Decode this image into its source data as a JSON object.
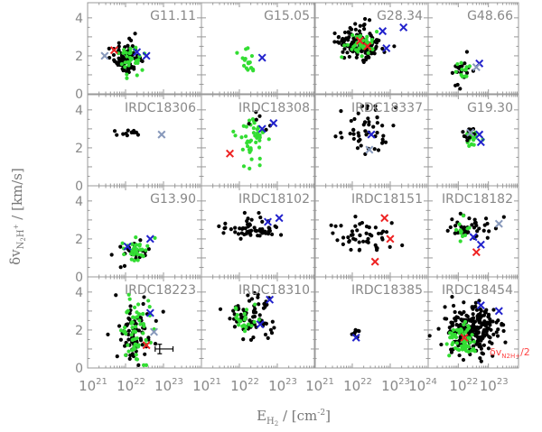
{
  "chart_data": {
    "type": "scatter",
    "grid_layout": "4x4",
    "xlabel": "E_H2 / [cm^-2]",
    "xlabel_parts": {
      "E": "E",
      "sub": "H",
      "sub2": "2",
      "unit": " / [cm",
      "exp": "-2",
      "close": "]"
    },
    "ylabel": "δv_N2H+ / [km/s]",
    "ylabel_parts": {
      "delta": "δv",
      "sub": "N",
      "sub2": "2",
      "sub3": "H",
      "sup": "+",
      "unit": " / [km/s]"
    },
    "xscale": "log",
    "xlim_log10": [
      21,
      24
    ],
    "ylim": [
      0,
      4.8
    ],
    "x_ticks": [
      {
        "label": "10",
        "exp": "21",
        "log10": 21
      },
      {
        "label": "10",
        "exp": "22",
        "log10": 22
      },
      {
        "label": "10",
        "exp": "23",
        "log10": 23
      }
    ],
    "x_ticks_last_col": [
      {
        "label": "10",
        "exp": "22",
        "log10": 22
      },
      {
        "label": "10",
        "exp": "23",
        "log10": 23
      }
    ],
    "x_tick_24": {
      "label": "10",
      "exp": "24"
    },
    "y_ticks": [
      "0",
      "2",
      "4"
    ],
    "y_tick_values": [
      0,
      2,
      4
    ],
    "legend_note": {
      "text": "δv",
      "sub": "N2H+",
      "suffix": "/2",
      "color": "#ff4444"
    },
    "error_bar": {
      "x_log10": 22.9,
      "y": 1.0,
      "xerr_log10": [
        22.78,
        23.25
      ],
      "yerr": 0.25
    },
    "marker_colors": {
      "black": "#000000",
      "green": "#33dd33",
      "red": "#ee2222",
      "blue": "#2222cc",
      "gray": "#8899bb"
    },
    "panels": [
      {
        "title": "G11.11",
        "clusters": [
          {
            "color": "black",
            "n": 90,
            "cx": 22.05,
            "cy": 1.9,
            "sx": 0.17,
            "sy": 0.42,
            "seed": 1
          },
          {
            "color": "green",
            "n": 30,
            "cx": 22.15,
            "cy": 1.9,
            "sx": 0.15,
            "sy": 0.35,
            "seed": 2
          }
        ],
        "crosses": [
          {
            "c": "gray",
            "x": 21.45,
            "y": 2.0
          },
          {
            "c": "red",
            "x": 21.7,
            "y": 2.3
          },
          {
            "c": "blue",
            "x": 22.55,
            "y": 2.0
          },
          {
            "c": "blue",
            "x": 22.3,
            "y": 2.2
          }
        ]
      },
      {
        "title": "G15.05",
        "clusters": [
          {
            "color": "green",
            "n": 18,
            "cx": 22.2,
            "cy": 1.55,
            "sx": 0.1,
            "sy": 0.35,
            "seed": 3
          }
        ],
        "crosses": [
          {
            "c": "blue",
            "x": 22.6,
            "y": 1.9
          }
        ]
      },
      {
        "title": "G28.34",
        "clusters": [
          {
            "color": "black",
            "n": 140,
            "cx": 22.2,
            "cy": 2.6,
            "sx": 0.3,
            "sy": 0.45,
            "seed": 4
          },
          {
            "color": "green",
            "n": 35,
            "cx": 22.3,
            "cy": 2.6,
            "sx": 0.25,
            "sy": 0.35,
            "seed": 5
          }
        ],
        "crosses": [
          {
            "c": "red",
            "x": 22.2,
            "y": 2.8
          },
          {
            "c": "red",
            "x": 22.4,
            "y": 2.5
          },
          {
            "c": "blue",
            "x": 22.8,
            "y": 3.3
          },
          {
            "c": "blue",
            "x": 23.35,
            "y": 3.5
          },
          {
            "c": "blue",
            "x": 22.9,
            "y": 2.4
          }
        ]
      },
      {
        "title": "G48.66",
        "clusters": [
          {
            "color": "black",
            "n": 22,
            "cx": 22.1,
            "cy": 1.2,
            "sx": 0.12,
            "sy": 0.35,
            "seed": 6
          },
          {
            "color": "green",
            "n": 12,
            "cx": 22.15,
            "cy": 1.4,
            "sx": 0.1,
            "sy": 0.3,
            "seed": 7
          }
        ],
        "crosses": [
          {
            "c": "blue",
            "x": 22.7,
            "y": 1.6
          },
          {
            "c": "gray",
            "x": 22.6,
            "y": 1.4
          }
        ]
      },
      {
        "title": "IRDC18306",
        "clusters": [
          {
            "color": "black",
            "n": 12,
            "cx": 22.1,
            "cy": 2.8,
            "sx": 0.2,
            "sy": 0.12,
            "seed": 8
          }
        ],
        "crosses": [
          {
            "c": "gray",
            "x": 22.95,
            "y": 2.7
          }
        ]
      },
      {
        "title": "IRDC18308",
        "clusters": [
          {
            "color": "green",
            "n": 45,
            "cx": 22.3,
            "cy": 2.4,
            "sx": 0.18,
            "sy": 0.7,
            "seed": 9
          },
          {
            "color": "black",
            "n": 6,
            "cx": 22.6,
            "cy": 3.3,
            "sx": 0.15,
            "sy": 0.3,
            "seed": 10
          }
        ],
        "crosses": [
          {
            "c": "red",
            "x": 21.75,
            "y": 1.7
          },
          {
            "c": "blue",
            "x": 22.6,
            "y": 3.0
          },
          {
            "c": "blue",
            "x": 22.9,
            "y": 3.3
          }
        ]
      },
      {
        "title": "IRDC18337",
        "clusters": [
          {
            "color": "black",
            "n": 50,
            "cx": 22.35,
            "cy": 3.0,
            "sx": 0.35,
            "sy": 0.75,
            "seed": 11
          }
        ],
        "crosses": [
          {
            "c": "blue",
            "x": 22.5,
            "y": 2.7
          },
          {
            "c": "gray",
            "x": 22.45,
            "y": 1.9
          }
        ]
      },
      {
        "title": "G19.30",
        "clusters": [
          {
            "color": "green",
            "n": 30,
            "cx": 22.45,
            "cy": 2.55,
            "sx": 0.12,
            "sy": 0.25,
            "seed": 12
          },
          {
            "color": "black",
            "n": 10,
            "cx": 22.3,
            "cy": 2.8,
            "sx": 0.12,
            "sy": 0.2,
            "seed": 13
          }
        ],
        "crosses": [
          {
            "c": "blue",
            "x": 22.7,
            "y": 2.7
          },
          {
            "c": "blue",
            "x": 22.75,
            "y": 2.3
          },
          {
            "c": "gray",
            "x": 22.4,
            "y": 2.8
          }
        ]
      },
      {
        "title": "G13.90",
        "clusters": [
          {
            "color": "black",
            "n": 25,
            "cx": 22.2,
            "cy": 1.3,
            "sx": 0.2,
            "sy": 0.35,
            "seed": 14
          },
          {
            "color": "green",
            "n": 30,
            "cx": 22.25,
            "cy": 1.4,
            "sx": 0.18,
            "sy": 0.35,
            "seed": 15
          }
        ],
        "crosses": [
          {
            "c": "blue",
            "x": 22.05,
            "y": 1.6
          },
          {
            "c": "blue",
            "x": 22.65,
            "y": 2.0
          }
        ]
      },
      {
        "title": "IRDC18102",
        "clusters": [
          {
            "color": "black",
            "n": 60,
            "cx": 22.35,
            "cy": 2.45,
            "sx": 0.35,
            "sy": 0.35,
            "seed": 16
          }
        ],
        "crosses": [
          {
            "c": "blue",
            "x": 22.75,
            "y": 2.9
          },
          {
            "c": "blue",
            "x": 23.05,
            "y": 3.1
          }
        ]
      },
      {
        "title": "IRDC18151",
        "clusters": [
          {
            "color": "black",
            "n": 50,
            "cx": 22.3,
            "cy": 2.1,
            "sx": 0.4,
            "sy": 0.45,
            "seed": 17
          }
        ],
        "crosses": [
          {
            "c": "red",
            "x": 22.85,
            "y": 3.1
          },
          {
            "c": "red",
            "x": 23.0,
            "y": 2.0
          },
          {
            "c": "red",
            "x": 22.6,
            "y": 0.8
          }
        ]
      },
      {
        "title": "IRDC18182",
        "clusters": [
          {
            "color": "black",
            "n": 40,
            "cx": 22.4,
            "cy": 2.5,
            "sx": 0.4,
            "sy": 0.35,
            "seed": 18
          },
          {
            "color": "green",
            "n": 12,
            "cx": 22.15,
            "cy": 2.4,
            "sx": 0.15,
            "sy": 0.3,
            "seed": 19
          }
        ],
        "crosses": [
          {
            "c": "gray",
            "x": 23.35,
            "y": 2.8
          },
          {
            "c": "blue",
            "x": 22.75,
            "y": 1.7
          },
          {
            "c": "red",
            "x": 22.6,
            "y": 1.3
          },
          {
            "c": "blue",
            "x": 22.5,
            "y": 2.1
          }
        ]
      },
      {
        "title": "IRDC18223",
        "clusters": [
          {
            "color": "black",
            "n": 80,
            "cx": 22.2,
            "cy": 2.0,
            "sx": 0.2,
            "sy": 0.8,
            "seed": 20
          },
          {
            "color": "green",
            "n": 60,
            "cx": 22.25,
            "cy": 2.0,
            "sx": 0.2,
            "sy": 0.8,
            "seed": 21
          }
        ],
        "crosses": [
          {
            "c": "blue",
            "x": 22.65,
            "y": 2.9
          },
          {
            "c": "red",
            "x": 22.55,
            "y": 1.2
          },
          {
            "c": "gray",
            "x": 22.75,
            "y": 1.9
          }
        ]
      },
      {
        "title": "IRDC18310",
        "clusters": [
          {
            "color": "black",
            "n": 70,
            "cx": 22.3,
            "cy": 2.6,
            "sx": 0.3,
            "sy": 0.6,
            "seed": 22
          },
          {
            "color": "green",
            "n": 22,
            "cx": 22.2,
            "cy": 2.6,
            "sx": 0.2,
            "sy": 0.4,
            "seed": 23
          }
        ],
        "crosses": [
          {
            "c": "blue",
            "x": 22.8,
            "y": 3.6
          },
          {
            "c": "blue",
            "x": 22.55,
            "y": 2.3
          }
        ]
      },
      {
        "title": "IRDC18385",
        "clusters": [
          {
            "color": "black",
            "n": 8,
            "cx": 22.1,
            "cy": 1.95,
            "sx": 0.06,
            "sy": 0.15,
            "seed": 24
          }
        ],
        "crosses": [
          {
            "c": "blue",
            "x": 22.1,
            "y": 1.6
          }
        ]
      },
      {
        "title": "IRDC18454",
        "clusters": [
          {
            "color": "black",
            "n": 230,
            "cx": 22.45,
            "cy": 2.0,
            "sx": 0.45,
            "sy": 0.65,
            "seed": 25
          },
          {
            "color": "green",
            "n": 60,
            "cx": 22.1,
            "cy": 1.5,
            "sx": 0.25,
            "sy": 0.4,
            "seed": 26
          }
        ],
        "crosses": [
          {
            "c": "blue",
            "x": 22.75,
            "y": 3.3
          },
          {
            "c": "blue",
            "x": 23.35,
            "y": 3.0
          },
          {
            "c": "red",
            "x": 22.2,
            "y": 1.6
          }
        ]
      }
    ]
  }
}
